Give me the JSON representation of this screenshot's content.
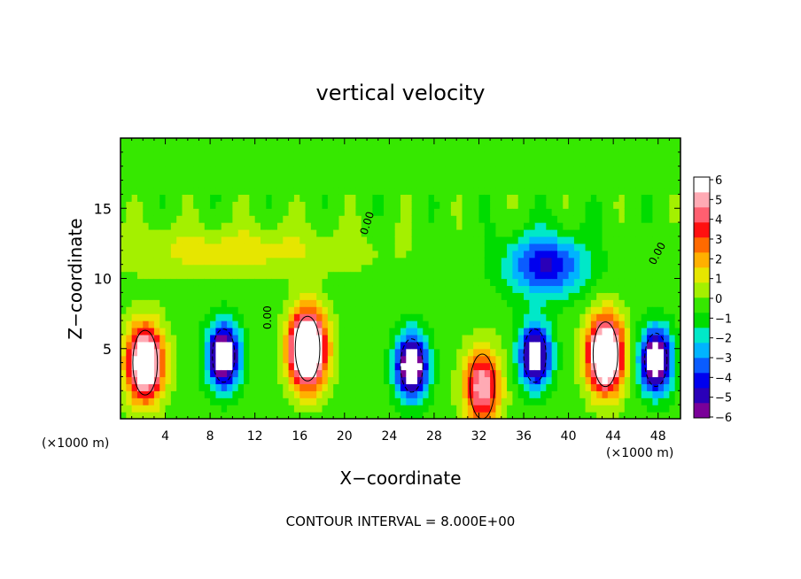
{
  "chart_data": {
    "type": "heatmap",
    "title": "vertical velocity",
    "xlabel": "X−coordinate",
    "ylabel": "Z−coordinate",
    "x_units": "(×1000 m)",
    "z_units": "(×1000 m)",
    "xlim": [
      0,
      50
    ],
    "ylim": [
      0,
      20
    ],
    "x_ticks": [
      4,
      8,
      12,
      16,
      20,
      24,
      28,
      32,
      36,
      40,
      44,
      48
    ],
    "y_ticks": [
      5,
      10,
      15
    ],
    "x_tick_labels": [
      "4",
      "8",
      "12",
      "16",
      "20",
      "24",
      "28",
      "32",
      "36",
      "40",
      "44",
      "48"
    ],
    "y_tick_labels": [
      "5",
      "10",
      "15"
    ],
    "colorbar": {
      "min": -6,
      "max": 6,
      "tick_labels": [
        "6",
        "5",
        "4",
        "3",
        "2",
        "1",
        "0",
        "−1",
        "−2",
        "−3",
        "−4",
        "−5",
        "−6"
      ],
      "colors": [
        "#7a0099",
        "#2a00b8",
        "#0000ee",
        "#0a5cff",
        "#00b4ff",
        "#00e8c8",
        "#00dc00",
        "#36e800",
        "#a4f000",
        "#e6e600",
        "#ffb000",
        "#ff6a00",
        "#ff1010",
        "#ff5f70",
        "#ffaab4",
        "#ffffff"
      ]
    },
    "contour_labels": [
      "0.00",
      "0.00",
      "0.00"
    ],
    "footer": "CONTOUR INTERVAL = 8.000E+00",
    "features": [
      {
        "name": "updraft",
        "x": 2.2,
        "z": 4.0,
        "w": 9
      },
      {
        "name": "updraft",
        "x": 16.7,
        "z": 5.0,
        "w": 11
      },
      {
        "name": "updraft",
        "x": 32.3,
        "z": 2.3,
        "w": 6
      },
      {
        "name": "updraft",
        "x": 43.3,
        "z": 4.6,
        "w": 10
      },
      {
        "name": "downdraft",
        "x": 9.2,
        "z": 4.5,
        "w": -8
      },
      {
        "name": "downdraft",
        "x": 26.0,
        "z": 3.8,
        "w": -8
      },
      {
        "name": "downdraft",
        "x": 37.0,
        "z": 4.5,
        "w": -7
      },
      {
        "name": "downdraft",
        "x": 47.8,
        "z": 4.2,
        "w": -8
      },
      {
        "name": "downdraft",
        "x": 38.0,
        "z": 11.0,
        "w": -4.5
      }
    ]
  }
}
